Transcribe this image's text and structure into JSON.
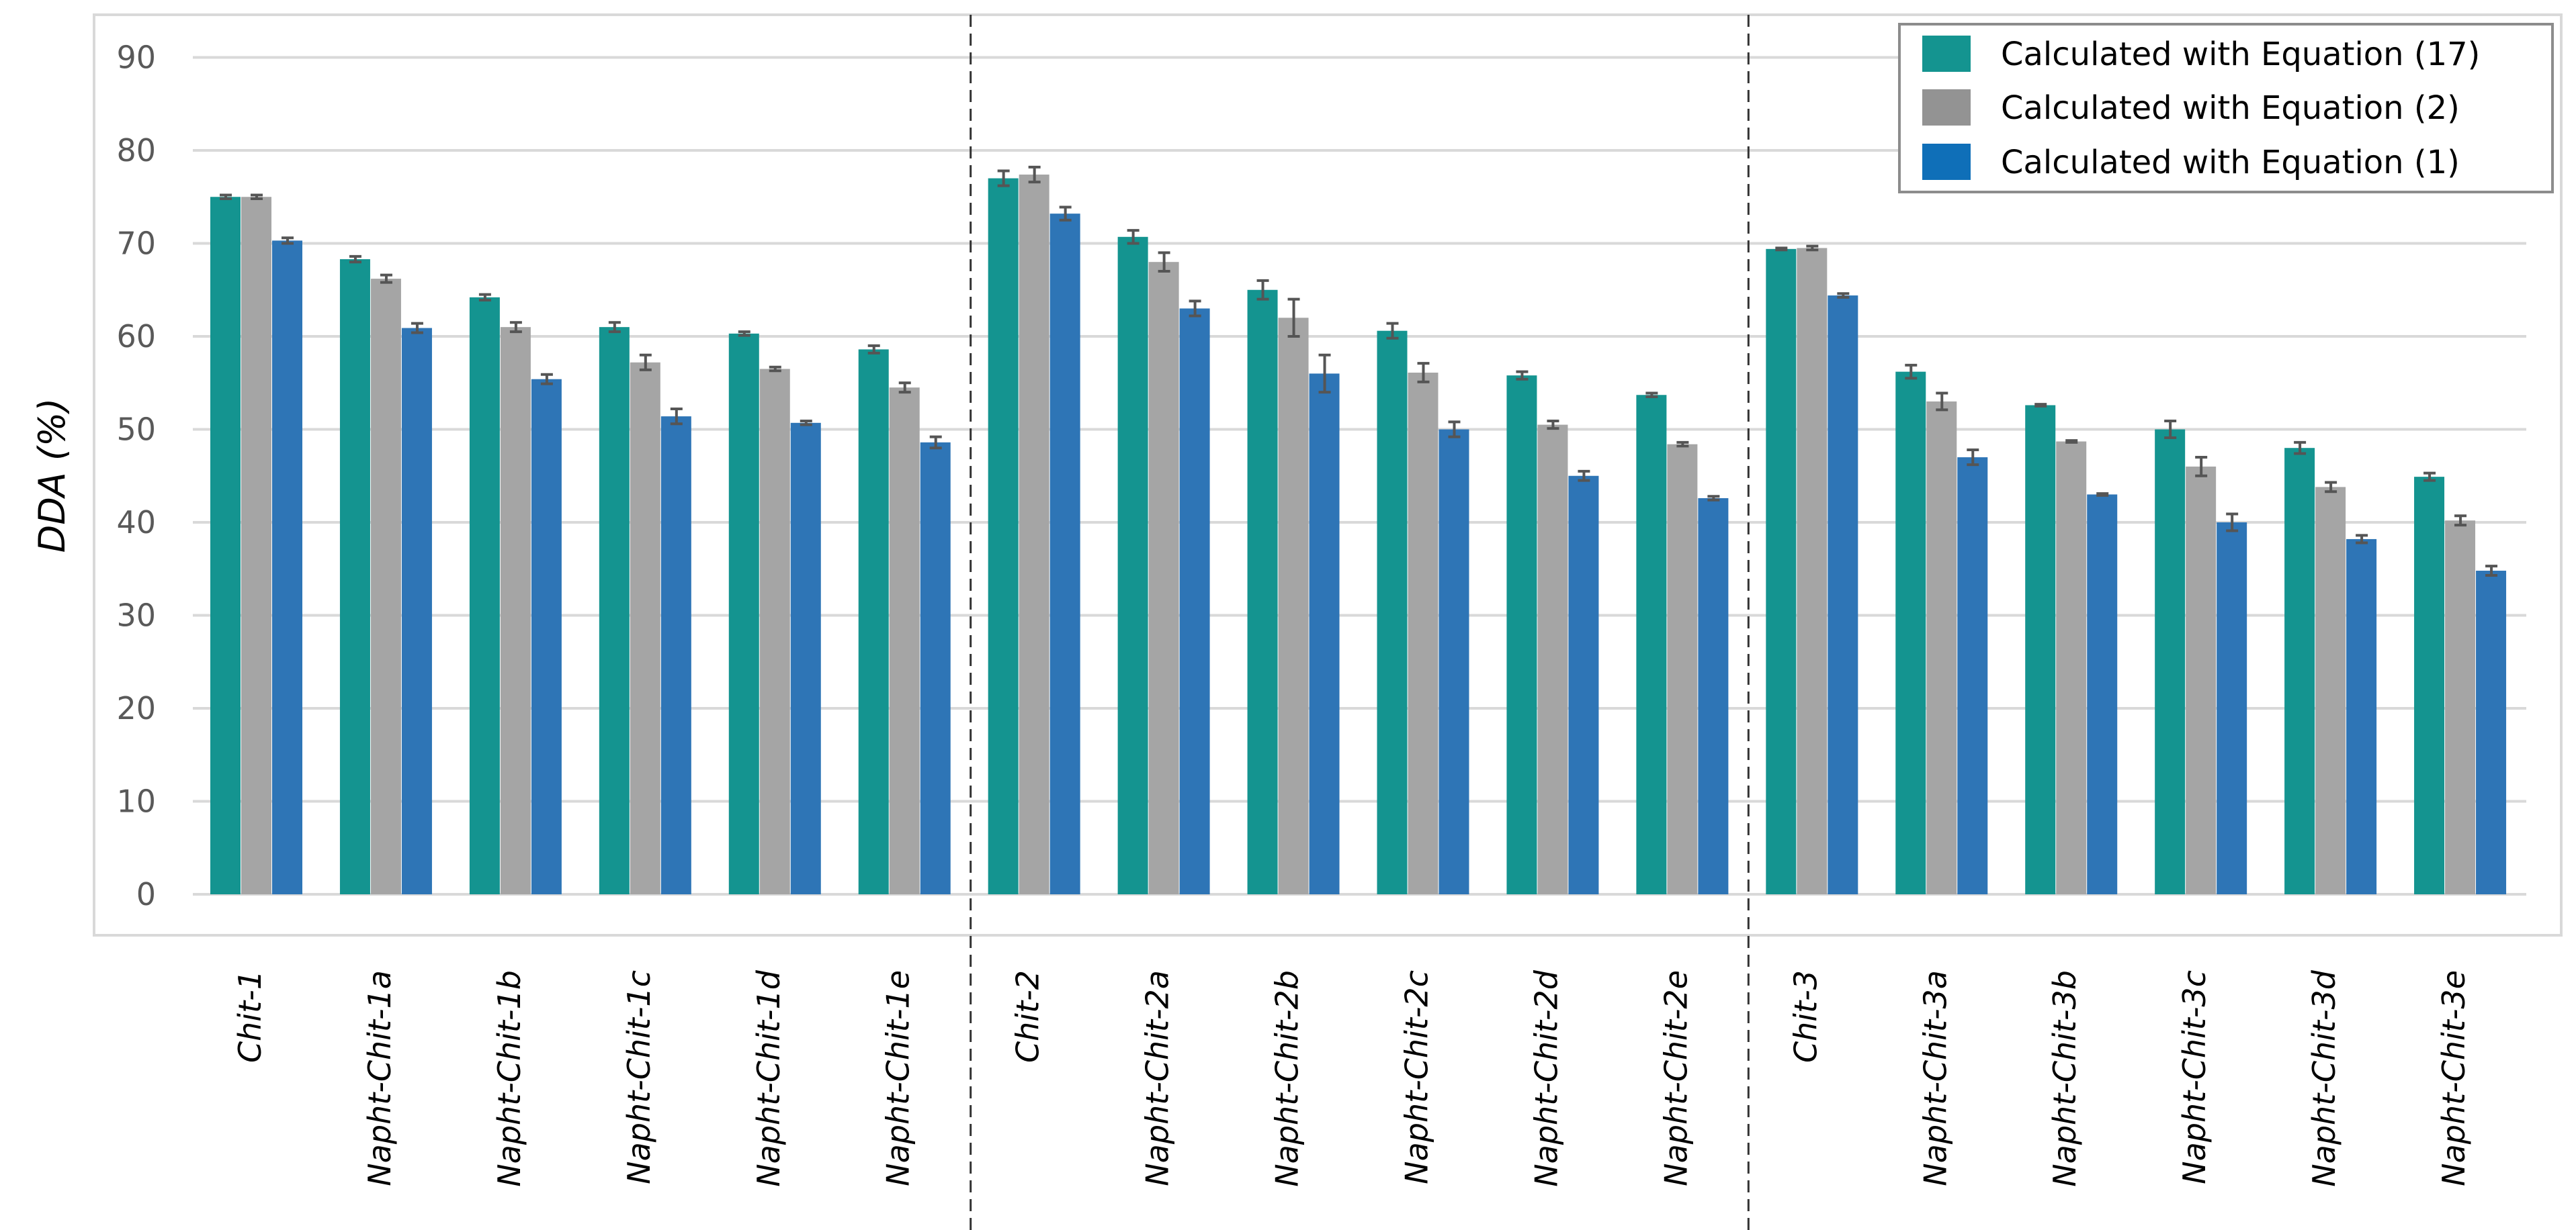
{
  "chart_data": {
    "type": "bar",
    "title": "",
    "xlabel": "",
    "ylabel": "DDA (%)",
    "ylim": [
      0,
      90
    ],
    "yticks": [
      "0",
      "10",
      "20",
      "30",
      "40",
      "50",
      "60",
      "70",
      "80",
      "90"
    ],
    "grid": true,
    "legend_position": "top-right",
    "categories": [
      "Chit-1",
      "Napht-Chit-1a",
      "Napht-Chit-1b",
      "Napht-Chit-1c",
      "Napht-Chit-1d",
      "Napht-Chit-1e",
      "Chit-2",
      "Napht-Chit-2a",
      "Napht-Chit-2b",
      "Napht-Chit-2c",
      "Napht-Chit-2d",
      "Napht-Chit-2e",
      "Chit-3",
      "Napht-Chit-3a",
      "Napht-Chit-3b",
      "Napht-Chit-3c",
      "Napht-Chit-3d",
      "Napht-Chit-3e"
    ],
    "group_separators_after": [
      "Napht-Chit-1e",
      "Napht-Chit-2e"
    ],
    "series": [
      {
        "name": "Calculated with Equation (17)",
        "color": "#149490",
        "values": [
          75.0,
          68.3,
          64.2,
          61.0,
          60.3,
          58.6,
          77.0,
          70.7,
          65.0,
          60.6,
          55.8,
          53.7,
          69.4,
          56.2,
          52.6,
          50.0,
          48.0,
          44.9
        ],
        "errors": [
          0.2,
          0.3,
          0.3,
          0.5,
          0.2,
          0.4,
          0.8,
          0.7,
          1.0,
          0.8,
          0.4,
          0.2,
          0.1,
          0.7,
          0.1,
          0.9,
          0.6,
          0.4
        ]
      },
      {
        "name": "Calculated with Equation (2)",
        "color": "#a5a5a5",
        "values": [
          75.0,
          66.2,
          61.0,
          57.2,
          56.5,
          54.5,
          77.4,
          68.0,
          62.0,
          56.1,
          50.5,
          48.4,
          69.5,
          53.0,
          48.7,
          46.0,
          43.8,
          40.2
        ],
        "errors": [
          0.2,
          0.4,
          0.5,
          0.8,
          0.2,
          0.5,
          0.8,
          1.0,
          2.0,
          1.0,
          0.4,
          0.2,
          0.2,
          0.9,
          0.1,
          1.0,
          0.5,
          0.5
        ]
      },
      {
        "name": "Calculated with Equation (1)",
        "color": "#2e75b6",
        "values": [
          70.3,
          60.9,
          55.4,
          51.4,
          50.7,
          48.6,
          73.2,
          63.0,
          56.0,
          50.0,
          45.0,
          42.6,
          64.4,
          47.0,
          43.0,
          40.0,
          38.2,
          34.8
        ],
        "errors": [
          0.3,
          0.5,
          0.5,
          0.8,
          0.2,
          0.6,
          0.7,
          0.8,
          2.0,
          0.8,
          0.5,
          0.2,
          0.2,
          0.8,
          0.1,
          0.9,
          0.4,
          0.5
        ]
      }
    ],
    "legend_swatch_colors": [
      "#149490",
      "#939393",
      "#0f6fb8"
    ]
  }
}
